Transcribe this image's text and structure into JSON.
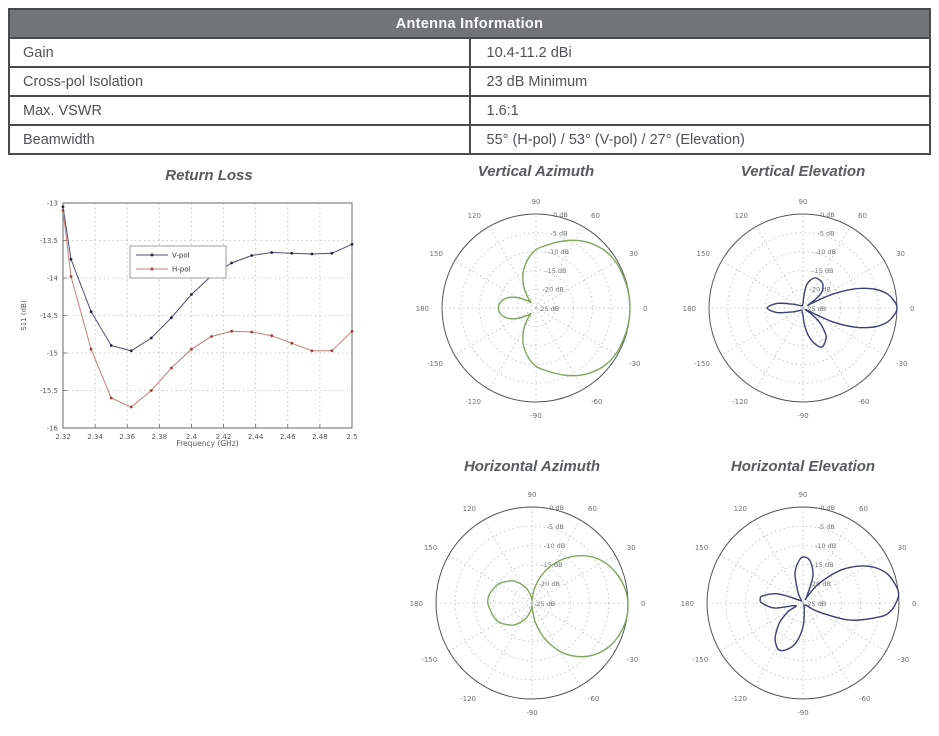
{
  "table": {
    "title": "Antenna Information",
    "rows": [
      {
        "label": "Gain",
        "value": "10.4-11.2 dBi"
      },
      {
        "label": "Cross-pol Isolation",
        "value": "23 dB Minimum"
      },
      {
        "label": "Max. VSWR",
        "value": "1.6:1"
      },
      {
        "label": "Beamwidth",
        "value": "55° (H-pol) / 53° (V-pol) / 27° (Elevation)"
      }
    ]
  },
  "colors": {
    "header_bg": "#727477",
    "table_border": "#4a4b4d",
    "table_text": "#515256",
    "title_text": "#595a5d",
    "polar_green": "#82a45f",
    "polar_navy": "#3d4073",
    "vpol_line": "#4c4d72",
    "vpol_marker": "#26263a",
    "hpol_line": "#c17f7c",
    "hpol_marker": "#9e3c3c"
  },
  "chart_data": [
    {
      "id": "return_loss",
      "type": "line",
      "title": "Return Loss",
      "xlabel": "Frequency (GHz)",
      "ylabel": "S11 (dB)",
      "xlim": [
        2.32,
        2.5
      ],
      "ylim": [
        -16,
        -13
      ],
      "xticks": [
        2.32,
        2.34,
        2.36,
        2.38,
        2.4,
        2.42,
        2.44,
        2.46,
        2.48,
        2.5
      ],
      "xtick_labels": [
        "2.32",
        "2.34",
        "2.36",
        "2.38",
        "2.4",
        "2.42",
        "2.44",
        "2.46",
        "2.48",
        "2.5"
      ],
      "yticks": [
        -13,
        -13.5,
        -14,
        -14.5,
        -15,
        -15.5,
        -16
      ],
      "ytick_labels": [
        "-13",
        "-13.5",
        "-14",
        "-14.5",
        "-15",
        "-15.5",
        "-16"
      ],
      "grid": true,
      "legend_position": "inside-upper-left",
      "series": [
        {
          "name": "V-pol",
          "line_color": "#4c4d72",
          "marker_color": "#26263a",
          "x": [
            2.32,
            2.325,
            2.3375,
            2.35,
            2.3625,
            2.375,
            2.3875,
            2.4,
            2.4125,
            2.425,
            2.4375,
            2.45,
            2.4625,
            2.475,
            2.4875,
            2.5
          ],
          "y": [
            -13.05,
            -13.75,
            -14.45,
            -14.9,
            -14.97,
            -14.8,
            -14.53,
            -14.22,
            -13.97,
            -13.8,
            -13.7,
            -13.66,
            -13.67,
            -13.68,
            -13.67,
            -13.55
          ]
        },
        {
          "name": "H-pol",
          "line_color": "#c17f7c",
          "marker_color": "#9e3c3c",
          "x": [
            2.32,
            2.325,
            2.3375,
            2.35,
            2.3625,
            2.375,
            2.3875,
            2.4,
            2.4125,
            2.425,
            2.4375,
            2.45,
            2.4625,
            2.475,
            2.4875,
            2.5
          ],
          "y": [
            -13.1,
            -13.98,
            -14.95,
            -15.6,
            -15.72,
            -15.5,
            -15.2,
            -14.95,
            -14.78,
            -14.71,
            -14.72,
            -14.77,
            -14.87,
            -14.97,
            -14.97,
            -14.71
          ]
        }
      ]
    },
    {
      "id": "vertical_azimuth",
      "type": "polar",
      "title": "Vertical Azimuth",
      "color": "#82a45f",
      "units": "dB",
      "rmin": -25,
      "rmax": 0,
      "radial_ticks_db": [
        0,
        -5,
        -10,
        -15,
        -20,
        -25
      ],
      "radial_tick_labels": [
        "0 dB",
        "-5 dB",
        "-10 dB",
        "-15 dB",
        "-20 dB",
        "-25 dB"
      ],
      "angle_ticks_deg": [
        0,
        30,
        60,
        90,
        120,
        150,
        180,
        -150,
        -120,
        -90,
        -60,
        -30
      ],
      "points": [
        [
          -180,
          -15.0
        ],
        [
          -170,
          -15.5
        ],
        [
          -160,
          -17.0
        ],
        [
          -150,
          -19.5
        ],
        [
          -140,
          -22.0
        ],
        [
          -133,
          -23.0
        ],
        [
          -128,
          -21.5
        ],
        [
          -120,
          -18.5
        ],
        [
          -110,
          -15.0
        ],
        [
          -100,
          -12.0
        ],
        [
          -90,
          -9.5
        ],
        [
          -80,
          -8.0
        ],
        [
          -70,
          -6.2
        ],
        [
          -60,
          -4.2
        ],
        [
          -50,
          -2.5
        ],
        [
          -40,
          -1.2
        ],
        [
          -30,
          -0.5
        ],
        [
          -20,
          -0.3
        ],
        [
          -10,
          -0.1
        ],
        [
          0,
          0
        ],
        [
          10,
          -0.1
        ],
        [
          20,
          -0.3
        ],
        [
          30,
          -0.5
        ],
        [
          40,
          -1.2
        ],
        [
          50,
          -2.5
        ],
        [
          60,
          -4.2
        ],
        [
          70,
          -6.2
        ],
        [
          80,
          -8.0
        ],
        [
          90,
          -9.5
        ],
        [
          100,
          -12.0
        ],
        [
          110,
          -15.0
        ],
        [
          120,
          -18.5
        ],
        [
          128,
          -21.5
        ],
        [
          133,
          -23.0
        ],
        [
          140,
          -22.0
        ],
        [
          150,
          -19.5
        ],
        [
          160,
          -17.0
        ],
        [
          170,
          -15.5
        ],
        [
          180,
          -15.0
        ]
      ]
    },
    {
      "id": "vertical_elevation",
      "type": "polar",
      "title": "Vertical Elevation",
      "color": "#3d4073",
      "units": "dB",
      "rmin": -25,
      "rmax": 0,
      "radial_ticks_db": [
        0,
        -5,
        -10,
        -15,
        -20,
        -25
      ],
      "radial_tick_labels": [
        "0 dB",
        "-5 dB",
        "-10 dB",
        "-15 dB",
        "-20 dB",
        "-25 dB"
      ],
      "angle_ticks_deg": [
        0,
        30,
        60,
        90,
        120,
        150,
        180,
        -150,
        -120,
        -90,
        -60,
        -30
      ],
      "points": [
        [
          -180,
          -15.5
        ],
        [
          -170,
          -18.0
        ],
        [
          -160,
          -22.0
        ],
        [
          -150,
          -23.5
        ],
        [
          -140,
          -24.0
        ],
        [
          -120,
          -24.3
        ],
        [
          -100,
          -24.0
        ],
        [
          -95,
          -23.5
        ],
        [
          -90,
          -23.0
        ],
        [
          -85,
          -20.5
        ],
        [
          -80,
          -18.0
        ],
        [
          -75,
          -16.0
        ],
        [
          -70,
          -14.5
        ],
        [
          -65,
          -13.5
        ],
        [
          -60,
          -13.8
        ],
        [
          -55,
          -14.5
        ],
        [
          -50,
          -15.5
        ],
        [
          -45,
          -17.5
        ],
        [
          -40,
          -19.5
        ],
        [
          -35,
          -22.5
        ],
        [
          -30,
          -24.0
        ],
        [
          -25,
          -16.3
        ],
        [
          -20,
          -10.0
        ],
        [
          -15,
          -5.5
        ],
        [
          -10,
          -2.5
        ],
        [
          -5,
          -0.8
        ],
        [
          0,
          0
        ],
        [
          5,
          -0.8
        ],
        [
          10,
          -2.5
        ],
        [
          15,
          -5.5
        ],
        [
          20,
          -10.0
        ],
        [
          25,
          -16.3
        ],
        [
          28,
          -22.0
        ],
        [
          30,
          -23.5
        ],
        [
          35,
          -20.8
        ],
        [
          40,
          -18.5
        ],
        [
          50,
          -16.8
        ],
        [
          60,
          -16.3
        ],
        [
          70,
          -16.5
        ],
        [
          80,
          -18.5
        ],
        [
          85,
          -21.3
        ],
        [
          90,
          -23.8
        ],
        [
          100,
          -24.3
        ],
        [
          120,
          -24.3
        ],
        [
          140,
          -24.0
        ],
        [
          150,
          -23.5
        ],
        [
          160,
          -22.0
        ],
        [
          170,
          -18.0
        ],
        [
          180,
          -15.5
        ]
      ]
    },
    {
      "id": "horizontal_azimuth",
      "type": "polar",
      "title": "Horizontal Azimuth",
      "color": "#82a45f",
      "units": "dB",
      "rmin": -25,
      "rmax": 0,
      "radial_ticks_db": [
        0,
        -5,
        -10,
        -15,
        -20,
        -25
      ],
      "radial_tick_labels": [
        "0 dB",
        "-5 dB",
        "-10 dB",
        "-15 dB",
        "-20 dB",
        "-25 dB"
      ],
      "angle_ticks_deg": [
        0,
        30,
        60,
        90,
        120,
        150,
        180,
        -150,
        -120,
        -90,
        -60,
        -30
      ],
      "points": [
        [
          -180,
          -13.5
        ],
        [
          -170,
          -14.0
        ],
        [
          -160,
          -14.4
        ],
        [
          -150,
          -15.0
        ],
        [
          -140,
          -16.3
        ],
        [
          -130,
          -17.5
        ],
        [
          -120,
          -19.3
        ],
        [
          -110,
          -21.0
        ],
        [
          -100,
          -23.0
        ],
        [
          -90,
          -24.3
        ],
        [
          -86,
          -23.5
        ],
        [
          -80,
          -19.8
        ],
        [
          -70,
          -15.0
        ],
        [
          -60,
          -10.5
        ],
        [
          -50,
          -6.8
        ],
        [
          -40,
          -4.0
        ],
        [
          -30,
          -2.0
        ],
        [
          -20,
          -0.8
        ],
        [
          -10,
          -0.1
        ],
        [
          0,
          0
        ],
        [
          10,
          -0.6
        ],
        [
          20,
          -1.8
        ],
        [
          30,
          -3.5
        ],
        [
          40,
          -6.0
        ],
        [
          50,
          -9.3
        ],
        [
          60,
          -13.0
        ],
        [
          70,
          -17.0
        ],
        [
          80,
          -21.0
        ],
        [
          86,
          -23.8
        ],
        [
          90,
          -24.3
        ],
        [
          100,
          -23.0
        ],
        [
          110,
          -21.0
        ],
        [
          120,
          -19.3
        ],
        [
          130,
          -17.5
        ],
        [
          140,
          -16.3
        ],
        [
          150,
          -15.0
        ],
        [
          160,
          -14.3
        ],
        [
          170,
          -13.6
        ],
        [
          180,
          -13.5
        ]
      ]
    },
    {
      "id": "horizontal_elevation",
      "type": "polar",
      "title": "Horizontal Elevation",
      "color": "#3d4073",
      "units": "dB",
      "rmin": -25,
      "rmax": 0,
      "radial_ticks_db": [
        0,
        -5,
        -10,
        -15,
        -20,
        -25
      ],
      "radial_tick_labels": [
        "0 dB",
        "-5 dB",
        "-10 dB",
        "-15 dB",
        "-20 dB",
        "-25 dB"
      ],
      "angle_ticks_deg": [
        0,
        30,
        60,
        90,
        120,
        150,
        180,
        -150,
        -120,
        -90,
        -60,
        -30
      ],
      "points": [
        [
          -180,
          -14.3
        ],
        [
          -170,
          -17.5
        ],
        [
          -160,
          -23.0
        ],
        [
          -150,
          -20.5
        ],
        [
          -140,
          -17.0
        ],
        [
          -130,
          -13.8
        ],
        [
          -125,
          -12.5
        ],
        [
          -118,
          -11.3
        ],
        [
          -110,
          -12.0
        ],
        [
          -100,
          -14.5
        ],
        [
          -90,
          -18.8
        ],
        [
          -80,
          -23.0
        ],
        [
          -72,
          -24.3
        ],
        [
          -60,
          -24.3
        ],
        [
          -50,
          -24.3
        ],
        [
          -40,
          -24.0
        ],
        [
          -35,
          -23.8
        ],
        [
          -30,
          -20.5
        ],
        [
          -20,
          -12.0
        ],
        [
          -10,
          -4.5
        ],
        [
          -5,
          -2.0
        ],
        [
          0,
          -0.8
        ],
        [
          5,
          0
        ],
        [
          10,
          -0.3
        ],
        [
          20,
          -2.0
        ],
        [
          30,
          -5.8
        ],
        [
          40,
          -11.3
        ],
        [
          50,
          -18.0
        ],
        [
          55,
          -22.0
        ],
        [
          58,
          -23.8
        ],
        [
          60,
          -23.0
        ],
        [
          70,
          -17.5
        ],
        [
          80,
          -14.0
        ],
        [
          88,
          -13.0
        ],
        [
          95,
          -13.8
        ],
        [
          105,
          -17.0
        ],
        [
          115,
          -22.0
        ],
        [
          120,
          -24.0
        ],
        [
          130,
          -24.3
        ],
        [
          140,
          -24.0
        ],
        [
          150,
          -23.0
        ],
        [
          160,
          -18.0
        ],
        [
          170,
          -14.3
        ],
        [
          175,
          -13.8
        ],
        [
          180,
          -14.3
        ]
      ]
    }
  ]
}
